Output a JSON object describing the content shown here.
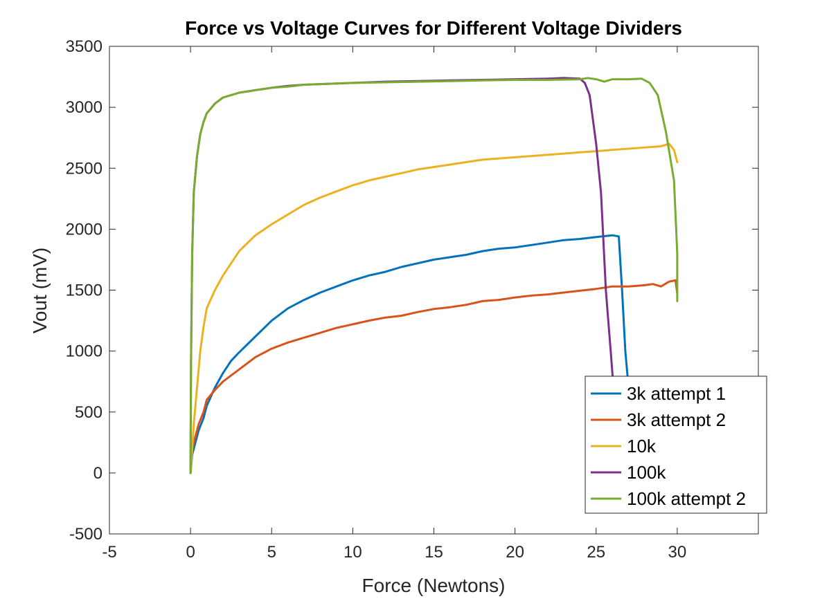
{
  "chart_data": {
    "type": "line",
    "title": "Force vs Voltage Curves for Different Voltage Dividers",
    "xlabel": "Force (Newtons)",
    "ylabel": "Vout (mV)",
    "xlim": [
      -5,
      35
    ],
    "ylim": [
      -500,
      3500
    ],
    "xticks": [
      -5,
      0,
      5,
      10,
      15,
      20,
      25,
      30
    ],
    "yticks": [
      -500,
      0,
      500,
      1000,
      1500,
      2000,
      2500,
      3000,
      3500
    ],
    "grid": false,
    "legend_position": "bottom-right",
    "series": [
      {
        "name": "3k attempt 1",
        "color": "#0072BD",
        "x": [
          0,
          0.1,
          0.3,
          0.5,
          0.8,
          1.0,
          1.5,
          2.0,
          2.5,
          3.0,
          4.0,
          5.0,
          6.0,
          7.0,
          8.0,
          9.0,
          10.0,
          11.0,
          12.0,
          13.0,
          14.0,
          15.0,
          16.0,
          17.0,
          18.0,
          19.0,
          20.0,
          21.0,
          22.0,
          23.0,
          24.0,
          25.0,
          26.0,
          26.4,
          26.6,
          26.8,
          27.0,
          27.2
        ],
        "y": [
          0,
          150,
          250,
          350,
          450,
          550,
          700,
          820,
          920,
          990,
          1120,
          1250,
          1350,
          1420,
          1480,
          1530,
          1580,
          1620,
          1650,
          1690,
          1720,
          1750,
          1770,
          1790,
          1820,
          1840,
          1850,
          1870,
          1890,
          1910,
          1920,
          1935,
          1950,
          1940,
          1500,
          1000,
          700,
          400
        ]
      },
      {
        "name": "3k attempt 2",
        "color": "#D95319",
        "x": [
          0,
          0.1,
          0.3,
          0.5,
          0.8,
          1.0,
          1.5,
          2.0,
          3.0,
          4.0,
          5.0,
          6.0,
          7.0,
          8.0,
          9.0,
          10.0,
          11.0,
          12.0,
          13.0,
          14.0,
          15.0,
          16.0,
          17.0,
          18.0,
          19.0,
          20.0,
          21.0,
          22.0,
          23.0,
          24.0,
          25.0,
          26.0,
          27.0,
          28.0,
          28.5,
          29.0,
          29.5,
          29.9,
          30.0
        ],
        "y": [
          0,
          200,
          300,
          400,
          500,
          600,
          680,
          750,
          850,
          950,
          1020,
          1070,
          1110,
          1150,
          1190,
          1220,
          1250,
          1275,
          1290,
          1320,
          1345,
          1360,
          1380,
          1410,
          1420,
          1440,
          1455,
          1465,
          1480,
          1495,
          1510,
          1530,
          1530,
          1540,
          1550,
          1530,
          1570,
          1580,
          1470
        ]
      },
      {
        "name": "10k",
        "color": "#EDB120",
        "x": [
          0,
          0.1,
          0.2,
          0.4,
          0.6,
          0.8,
          1.0,
          1.5,
          2.0,
          2.5,
          3.0,
          4.0,
          5.0,
          6.0,
          7.0,
          8.0,
          9.0,
          10.0,
          11.0,
          12.0,
          13.0,
          14.0,
          15.0,
          16.0,
          17.0,
          18.0,
          19.0,
          20.0,
          21.0,
          22.0,
          23.0,
          24.0,
          25.0,
          26.0,
          27.0,
          28.0,
          29.0,
          29.5,
          29.8,
          30.0
        ],
        "y": [
          0,
          200,
          400,
          700,
          1000,
          1200,
          1350,
          1500,
          1620,
          1720,
          1820,
          1950,
          2040,
          2120,
          2200,
          2260,
          2310,
          2360,
          2400,
          2430,
          2460,
          2490,
          2510,
          2530,
          2550,
          2570,
          2580,
          2590,
          2600,
          2610,
          2620,
          2630,
          2640,
          2650,
          2660,
          2670,
          2680,
          2700,
          2650,
          2550
        ]
      },
      {
        "name": "100k",
        "color": "#7E2F8E",
        "x": [
          0,
          0.03,
          0.1,
          0.2,
          0.4,
          0.6,
          0.8,
          1.0,
          1.5,
          2.0,
          3.0,
          4.0,
          5.0,
          6.0,
          7.0,
          8.0,
          9.0,
          10.0,
          12.0,
          14.0,
          16.0,
          18.0,
          20.0,
          22.0,
          23.0,
          24.0,
          24.3,
          24.6,
          25.0,
          25.3,
          25.6,
          25.9,
          26.1,
          26.3,
          26.5
        ],
        "y": [
          0,
          900,
          1800,
          2300,
          2600,
          2780,
          2880,
          2950,
          3030,
          3080,
          3120,
          3140,
          3160,
          3175,
          3185,
          3190,
          3195,
          3200,
          3210,
          3215,
          3220,
          3225,
          3230,
          3235,
          3240,
          3235,
          3200,
          3100,
          2700,
          2300,
          1500,
          1000,
          650,
          300,
          0
        ]
      },
      {
        "name": "100k attempt 2",
        "color": "#77AC30",
        "x": [
          0,
          0.03,
          0.1,
          0.2,
          0.4,
          0.6,
          0.8,
          1.0,
          1.5,
          2.0,
          3.0,
          4.0,
          5.0,
          6.0,
          7.0,
          8.0,
          9.0,
          10.0,
          12.0,
          14.0,
          16.0,
          18.0,
          20.0,
          22.0,
          24.0,
          24.5,
          25.0,
          25.5,
          26.0,
          27.0,
          27.8,
          28.3,
          28.8,
          29.3,
          29.8,
          30.0,
          30.0
        ],
        "y": [
          0,
          900,
          1800,
          2300,
          2600,
          2780,
          2880,
          2950,
          3030,
          3080,
          3120,
          3140,
          3160,
          3170,
          3185,
          3190,
          3195,
          3200,
          3205,
          3210,
          3215,
          3220,
          3225,
          3225,
          3230,
          3240,
          3230,
          3210,
          3230,
          3230,
          3235,
          3200,
          3100,
          2800,
          2400,
          1800,
          1410
        ]
      }
    ]
  }
}
